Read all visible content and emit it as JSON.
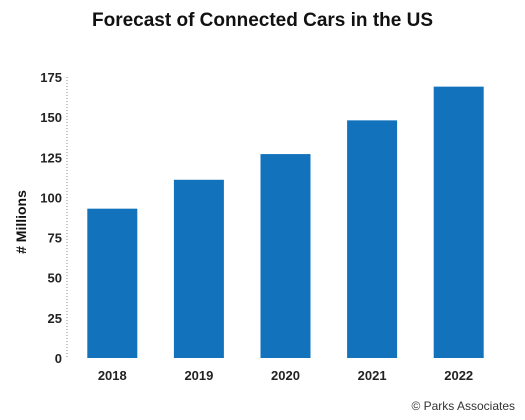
{
  "chart_data": {
    "type": "bar",
    "title": "Forecast of Connected Cars in the US",
    "ylabel": "# Millions",
    "xlabel": "",
    "categories": [
      "2018",
      "2019",
      "2020",
      "2021",
      "2022"
    ],
    "values": [
      93,
      111,
      127,
      148,
      169
    ],
    "ylim": [
      0,
      175
    ],
    "yticks": [
      0,
      25,
      50,
      75,
      100,
      125,
      150,
      175
    ],
    "grid": false,
    "bar_color": "#1372BC"
  },
  "credit": "© Parks Associates"
}
